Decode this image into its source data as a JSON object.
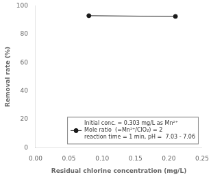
{
  "chart_data": {
    "type": "line",
    "x": [
      0.08,
      0.21
    ],
    "series": [
      {
        "name": "Initial conc. = 0.303 mg/L as Mn²⁺\nMole ratio  (=Mn²⁺/ClO₂) = 2\nreaction time = 1 min, pH =  7.03 - 7.06",
        "color": "#1a1a1a",
        "marker": "circle",
        "values": [
          93.0,
          92.5
        ]
      }
    ],
    "xlabel": "Residual chlorine concentration (mg/L)",
    "ylabel": "Removal rate (%)",
    "xlim": [
      0.0,
      0.25
    ],
    "xticks": [
      {
        "value": 0,
        "label": "0.00"
      },
      {
        "value": 0.05,
        "label": "0.05"
      },
      {
        "value": 0.1,
        "label": "0.10"
      },
      {
        "value": 0.15,
        "label": "0.15"
      },
      {
        "value": 0.2,
        "label": "0.20"
      },
      {
        "value": 0.25,
        "label": "0.25"
      }
    ],
    "ylim": [
      0,
      100
    ],
    "yticks": [
      0,
      20,
      40,
      60,
      80,
      100
    ],
    "grid": false,
    "legend": "lower right"
  }
}
